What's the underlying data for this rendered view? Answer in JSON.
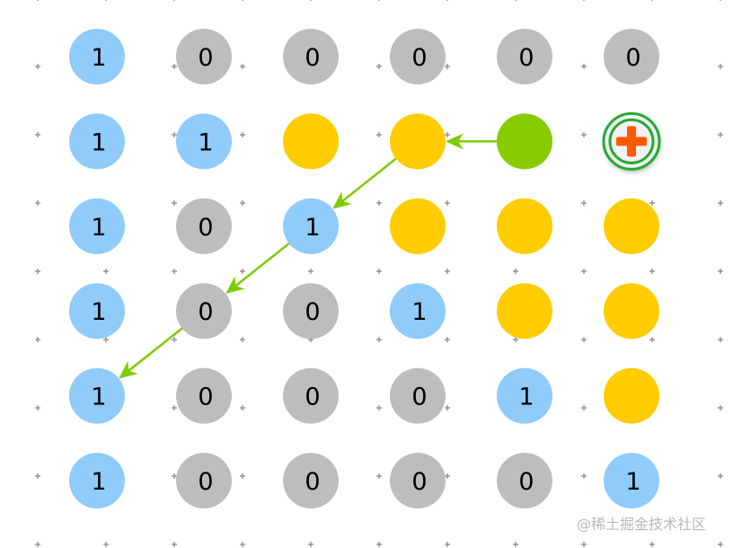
{
  "grid": [
    [
      {
        "c": "blue",
        "t": "1"
      },
      {
        "c": "gray",
        "t": "0"
      },
      {
        "c": "gray",
        "t": "0"
      },
      {
        "c": "gray",
        "t": "0"
      },
      {
        "c": "gray",
        "t": "0"
      },
      {
        "c": "gray",
        "t": "0"
      }
    ],
    [
      {
        "c": "blue",
        "t": "1"
      },
      {
        "c": "blue",
        "t": "1"
      },
      {
        "c": "yellow",
        "t": ""
      },
      {
        "c": "yellow",
        "t": ""
      },
      {
        "c": "green",
        "t": ""
      },
      {
        "c": "plus",
        "t": ""
      }
    ],
    [
      {
        "c": "blue",
        "t": "1"
      },
      {
        "c": "gray",
        "t": "0"
      },
      {
        "c": "blue",
        "t": "1"
      },
      {
        "c": "yellow",
        "t": ""
      },
      {
        "c": "yellow",
        "t": ""
      },
      {
        "c": "yellow",
        "t": ""
      }
    ],
    [
      {
        "c": "blue",
        "t": "1"
      },
      {
        "c": "gray",
        "t": "0"
      },
      {
        "c": "gray",
        "t": "0"
      },
      {
        "c": "blue",
        "t": "1"
      },
      {
        "c": "yellow",
        "t": ""
      },
      {
        "c": "yellow",
        "t": ""
      }
    ],
    [
      {
        "c": "blue",
        "t": "1"
      },
      {
        "c": "gray",
        "t": "0"
      },
      {
        "c": "gray",
        "t": "0"
      },
      {
        "c": "gray",
        "t": "0"
      },
      {
        "c": "blue",
        "t": "1"
      },
      {
        "c": "yellow",
        "t": ""
      }
    ],
    [
      {
        "c": "blue",
        "t": "1"
      },
      {
        "c": "gray",
        "t": "0"
      },
      {
        "c": "gray",
        "t": "0"
      },
      {
        "c": "gray",
        "t": "0"
      },
      {
        "c": "gray",
        "t": "0"
      },
      {
        "c": "blue",
        "t": "1"
      }
    ]
  ],
  "arrows": [
    [
      1,
      4,
      1,
      3
    ],
    [
      1,
      3,
      2,
      2
    ],
    [
      2,
      2,
      3,
      1
    ],
    [
      3,
      1,
      4,
      0
    ]
  ],
  "colors": {
    "blue": "#8fcbfb",
    "gray": "#bdbdbd",
    "yellow": "#ffcc00",
    "green": "#88cc00",
    "arrow": "#7ccc00",
    "plus": "#ff5a00",
    "ring": "#22aa33"
  },
  "watermark": "@稀土掘金技术社区"
}
